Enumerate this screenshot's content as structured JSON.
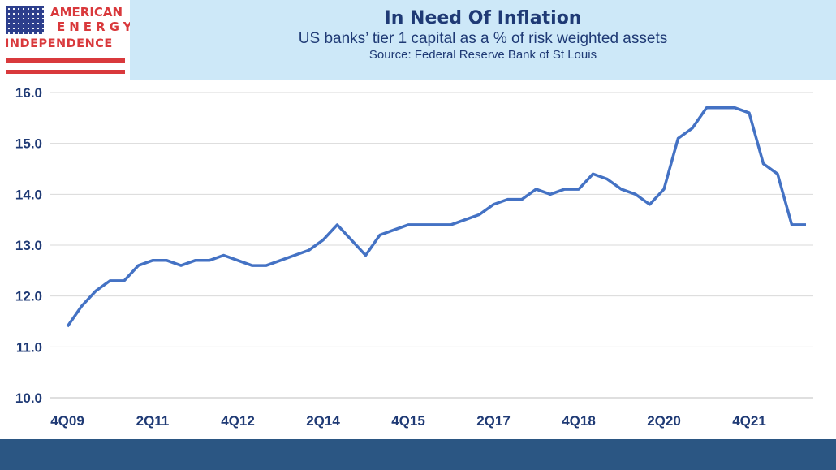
{
  "logo": {
    "line1": "AMERICAN",
    "line2": "ENERGY",
    "line3": "INDEPENDENCE"
  },
  "header": {
    "title": "In Need Of Inflation",
    "subtitle": "US banks’ tier 1 capital as a % of risk weighted assets",
    "source": "Source: Federal Reserve Bank of St Louis"
  },
  "colors": {
    "line": "#4472c4",
    "header_bg": "#cde8f8",
    "footer": "#2b5683",
    "text": "#1f3a75"
  },
  "chart_data": {
    "type": "line",
    "title": "In Need Of Inflation",
    "ylim": [
      10,
      16
    ],
    "grid": true,
    "yticks": [
      "10.0",
      "11.0",
      "12.0",
      "13.0",
      "14.0",
      "15.0",
      "16.0"
    ],
    "xtick_labels": [
      "4Q09",
      "2Q11",
      "4Q12",
      "2Q14",
      "4Q15",
      "2Q17",
      "4Q18",
      "2Q20",
      "4Q21"
    ],
    "x_start": "4Q09",
    "x_end": "4Q22",
    "values": [
      11.4,
      11.8,
      12.1,
      12.3,
      12.3,
      12.6,
      12.7,
      12.7,
      12.6,
      12.7,
      12.7,
      12.8,
      12.7,
      12.6,
      12.6,
      12.7,
      12.8,
      12.9,
      13.1,
      13.4,
      13.1,
      12.8,
      13.2,
      13.3,
      13.4,
      13.4,
      13.4,
      13.4,
      13.5,
      13.6,
      13.8,
      13.9,
      13.9,
      14.1,
      14.0,
      14.1,
      14.1,
      14.4,
      14.3,
      14.1,
      14.0,
      13.8,
      14.1,
      15.1,
      15.3,
      15.7,
      15.7,
      15.7,
      15.6,
      14.6,
      14.4,
      13.4,
      13.4
    ]
  }
}
